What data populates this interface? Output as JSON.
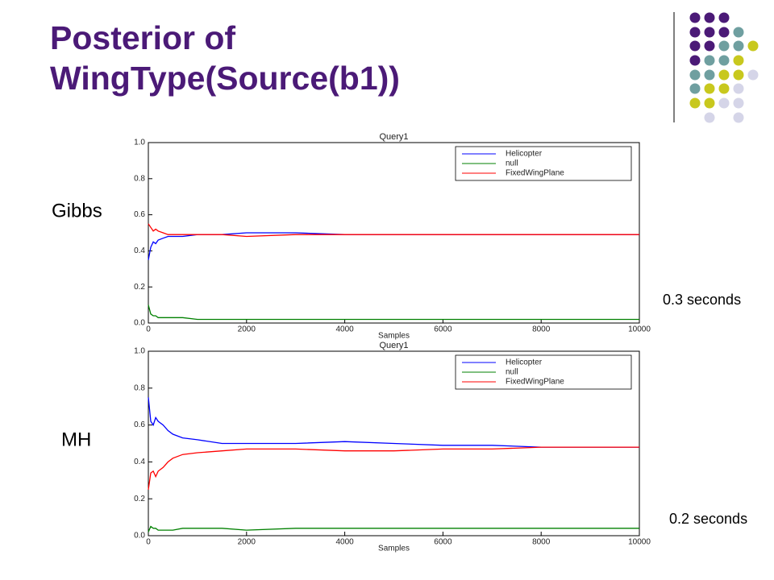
{
  "title": "Posterior of WingType(Source(b1))",
  "methods": [
    "Gibbs",
    "MH"
  ],
  "timings": [
    "0.3 seconds",
    "0.2 seconds"
  ],
  "chart_data": [
    {
      "type": "line",
      "title": "Query1",
      "xlabel": "Samples",
      "legend": "upper right",
      "grid": false,
      "x": [
        0,
        50,
        100,
        150,
        200,
        300,
        400,
        500,
        700,
        1000,
        1500,
        2000,
        3000,
        4000,
        5000,
        6000,
        7000,
        8000,
        9000,
        10000
      ],
      "series": [
        {
          "name": "Helicopter",
          "color": "#0000ff",
          "values": [
            0.35,
            0.42,
            0.45,
            0.44,
            0.46,
            0.47,
            0.48,
            0.48,
            0.48,
            0.49,
            0.49,
            0.5,
            0.5,
            0.49,
            0.49,
            0.49,
            0.49,
            0.49,
            0.49,
            0.49
          ]
        },
        {
          "name": "null",
          "color": "#008000",
          "values": [
            0.1,
            0.05,
            0.04,
            0.04,
            0.03,
            0.03,
            0.03,
            0.03,
            0.03,
            0.02,
            0.02,
            0.02,
            0.02,
            0.02,
            0.02,
            0.02,
            0.02,
            0.02,
            0.02,
            0.02
          ]
        },
        {
          "name": "FixedWingPlane",
          "color": "#ff0000",
          "values": [
            0.55,
            0.53,
            0.51,
            0.52,
            0.51,
            0.5,
            0.49,
            0.49,
            0.49,
            0.49,
            0.49,
            0.48,
            0.49,
            0.49,
            0.49,
            0.49,
            0.49,
            0.49,
            0.49,
            0.49
          ]
        }
      ],
      "xlim": [
        0,
        10000
      ],
      "xticks": [
        0,
        2000,
        4000,
        6000,
        8000,
        10000
      ],
      "ylim": [
        0,
        1
      ],
      "yticks": [
        {
          "value": 0,
          "label": "0.0"
        },
        {
          "value": 0.2,
          "label": "0.2"
        },
        {
          "value": 0.4,
          "label": "0.4"
        },
        {
          "value": 0.6,
          "label": "0.6"
        },
        {
          "value": 0.8,
          "label": "0.8"
        },
        {
          "value": 1,
          "label": "1.0"
        }
      ]
    },
    {
      "type": "line",
      "title": "Query1",
      "xlabel": "Samples",
      "legend": "upper right",
      "grid": false,
      "x": [
        0,
        50,
        100,
        150,
        200,
        300,
        400,
        500,
        700,
        1000,
        1500,
        2000,
        3000,
        4000,
        5000,
        6000,
        7000,
        8000,
        9000,
        10000
      ],
      "series": [
        {
          "name": "Helicopter",
          "color": "#0000ff",
          "values": [
            0.75,
            0.62,
            0.6,
            0.64,
            0.62,
            0.6,
            0.57,
            0.55,
            0.53,
            0.52,
            0.5,
            0.5,
            0.5,
            0.51,
            0.5,
            0.49,
            0.49,
            0.48,
            0.48,
            0.48
          ]
        },
        {
          "name": "null",
          "color": "#008000",
          "values": [
            0.02,
            0.05,
            0.04,
            0.04,
            0.03,
            0.03,
            0.03,
            0.03,
            0.04,
            0.04,
            0.04,
            0.03,
            0.04,
            0.04,
            0.04,
            0.04,
            0.04,
            0.04,
            0.04,
            0.04
          ]
        },
        {
          "name": "FixedWingPlane",
          "color": "#ff0000",
          "values": [
            0.25,
            0.34,
            0.35,
            0.32,
            0.35,
            0.37,
            0.4,
            0.42,
            0.44,
            0.45,
            0.46,
            0.47,
            0.47,
            0.46,
            0.46,
            0.47,
            0.47,
            0.48,
            0.48,
            0.48
          ]
        }
      ],
      "xlim": [
        0,
        10000
      ],
      "xticks": [
        0,
        2000,
        4000,
        6000,
        8000,
        10000
      ],
      "ylim": [
        0,
        1
      ],
      "yticks": [
        {
          "value": 0,
          "label": "0.0"
        },
        {
          "value": 0.2,
          "label": "0.2"
        },
        {
          "value": 0.4,
          "label": "0.4"
        },
        {
          "value": 0.6,
          "label": "0.6"
        },
        {
          "value": 0.8,
          "label": "0.8"
        },
        {
          "value": 1,
          "label": "1.0"
        }
      ]
    }
  ]
}
